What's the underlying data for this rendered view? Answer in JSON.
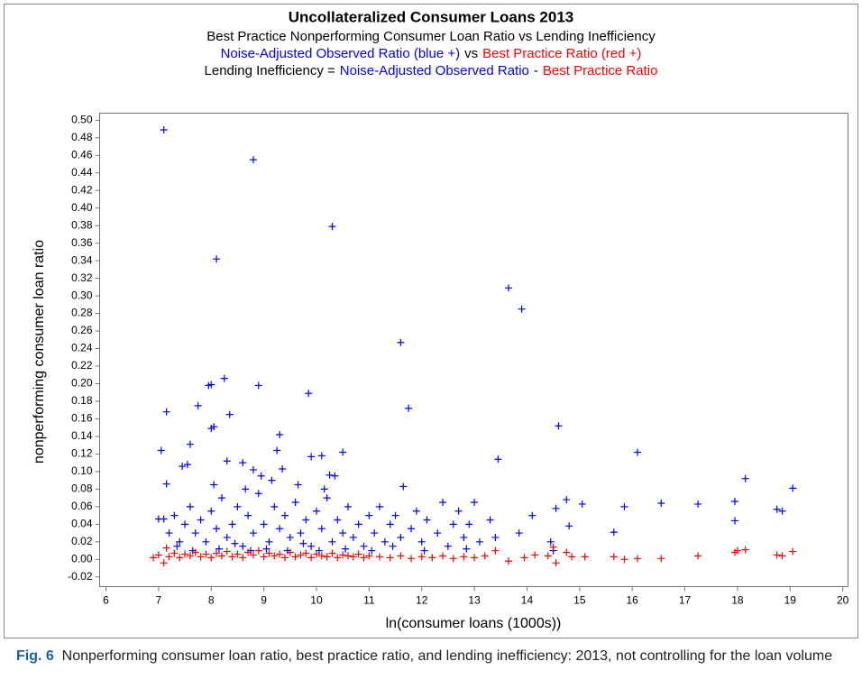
{
  "chart_data": {
    "type": "scatter",
    "title": "Uncollateralized Consumer Loans 2013",
    "subtitle": "Best Practice Nonperforming Consumer Loan Ratio vs Lending Inefficiency",
    "subtitle_lines": [
      [
        {
          "text": "Noise-Adjusted Observed Ratio (blue +)",
          "color": "#0000ff"
        },
        {
          "text": "vs",
          "color": "#000000"
        },
        {
          "text": "Best Practice Ratio (red +)",
          "color": "#ff0000"
        }
      ],
      [
        {
          "text": "Lending Inefficiency =",
          "color": "#000000"
        },
        {
          "text": "Noise-Adjusted Observed Ratio",
          "color": "#0000ff"
        },
        {
          "text": "-",
          "color": "#000000"
        },
        {
          "text": "Best Practice Ratio",
          "color": "#ff0000"
        }
      ]
    ],
    "x_label": "ln(consumer loans (1000s))",
    "y_label": "nonperforming consumer loan ratio",
    "xlim": [
      5.88,
      20.1
    ],
    "ylim": [
      -0.031,
      0.508
    ],
    "xticks": [
      6,
      7,
      8,
      9,
      10,
      11,
      12,
      13,
      14,
      15,
      16,
      17,
      18,
      19,
      20
    ],
    "yticks": [
      {
        "value": -0.02,
        "label": "-0.02"
      },
      {
        "value": 0,
        "label": "0.00"
      },
      {
        "value": 0.02,
        "label": "0.02"
      },
      {
        "value": 0.04,
        "label": "0.04"
      },
      {
        "value": 0.06,
        "label": "0.06"
      },
      {
        "value": 0.08,
        "label": "0.08"
      },
      {
        "value": 0.1,
        "label": "0.10"
      },
      {
        "value": 0.12,
        "label": "0.12"
      },
      {
        "value": 0.14,
        "label": "0.14"
      },
      {
        "value": 0.16,
        "label": "0.16"
      },
      {
        "value": 0.18,
        "label": "0.18"
      },
      {
        "value": 0.2,
        "label": "0.20"
      },
      {
        "value": 0.22,
        "label": "0.22"
      },
      {
        "value": 0.24,
        "label": "0.24"
      },
      {
        "value": 0.26,
        "label": "0.26"
      },
      {
        "value": 0.28,
        "label": "0.28"
      },
      {
        "value": 0.3,
        "label": "0.30"
      },
      {
        "value": 0.32,
        "label": "0.32"
      },
      {
        "value": 0.34,
        "label": "0.34"
      },
      {
        "value": 0.36,
        "label": "0.36"
      },
      {
        "value": 0.38,
        "label": "0.38"
      },
      {
        "value": 0.4,
        "label": "0.40"
      },
      {
        "value": 0.42,
        "label": "0.42"
      },
      {
        "value": 0.44,
        "label": "0.44"
      },
      {
        "value": 0.46,
        "label": "0.46"
      },
      {
        "value": 0.48,
        "label": "0.48"
      },
      {
        "value": 0.5,
        "label": "0.50"
      }
    ],
    "series": [
      {
        "color": "#0000ff",
        "x": [
          7.1,
          8.8,
          10.3,
          8.1,
          13.65,
          13.9,
          11.6,
          8.25,
          7.95,
          8.0,
          8.9,
          9.85,
          7.75,
          11.75,
          7.15,
          8.35,
          14.6,
          8.05,
          8.0,
          9.3,
          7.6,
          7.05,
          9.25,
          10.5,
          16.1,
          10.1,
          9.9,
          13.45,
          8.3,
          7.45,
          8.6,
          7.55,
          8.8,
          9.35,
          7.15,
          8.95,
          10.25,
          10.35,
          11.65,
          18.15,
          19.05,
          14.1,
          14.75,
          14.55,
          15.05,
          15.85,
          16.55,
          17.25,
          17.95,
          17.95,
          18.75,
          18.85,
          15.65,
          14.8,
          13.85,
          14.45,
          14.5,
          7.0,
          7.1,
          7.2,
          7.3,
          7.4,
          7.5,
          7.6,
          7.7,
          7.8,
          7.9,
          8.0,
          8.1,
          8.2,
          8.3,
          8.4,
          8.5,
          8.6,
          8.7,
          8.8,
          8.9,
          9.0,
          9.1,
          9.2,
          9.3,
          9.4,
          9.5,
          9.6,
          9.7,
          9.8,
          9.9,
          10.0,
          10.1,
          10.2,
          10.3,
          10.4,
          10.5,
          10.6,
          10.7,
          10.8,
          10.9,
          11.0,
          11.1,
          11.2,
          11.3,
          11.4,
          11.5,
          11.6,
          11.8,
          11.9,
          12.0,
          12.1,
          12.3,
          12.4,
          12.5,
          12.6,
          12.7,
          12.8,
          12.9,
          13.0,
          13.1,
          13.3,
          13.4,
          7.35,
          7.65,
          8.15,
          8.45,
          8.75,
          9.05,
          9.45,
          9.75,
          10.05,
          10.55,
          11.05,
          11.45,
          12.05,
          12.85,
          8.05,
          8.65,
          9.15,
          9.65,
          10.15
        ],
        "values": [
          0.489,
          0.455,
          0.379,
          0.342,
          0.309,
          0.285,
          0.247,
          0.206,
          0.198,
          0.199,
          0.198,
          0.189,
          0.175,
          0.172,
          0.168,
          0.165,
          0.152,
          0.151,
          0.149,
          0.142,
          0.131,
          0.124,
          0.124,
          0.122,
          0.122,
          0.118,
          0.117,
          0.114,
          0.112,
          0.106,
          0.11,
          0.108,
          0.102,
          0.103,
          0.086,
          0.095,
          0.096,
          0.095,
          0.083,
          0.092,
          0.081,
          0.05,
          0.068,
          0.058,
          0.063,
          0.06,
          0.064,
          0.063,
          0.066,
          0.044,
          0.057,
          0.055,
          0.031,
          0.038,
          0.03,
          0.02,
          0.01,
          0.046,
          0.046,
          0.03,
          0.05,
          0.02,
          0.04,
          0.06,
          0.03,
          0.045,
          0.02,
          0.055,
          0.035,
          0.07,
          0.025,
          0.04,
          0.06,
          0.015,
          0.05,
          0.03,
          0.075,
          0.04,
          0.02,
          0.06,
          0.035,
          0.05,
          0.025,
          0.065,
          0.03,
          0.045,
          0.015,
          0.055,
          0.035,
          0.07,
          0.02,
          0.045,
          0.03,
          0.06,
          0.025,
          0.04,
          0.015,
          0.05,
          0.03,
          0.06,
          0.02,
          0.04,
          0.05,
          0.025,
          0.035,
          0.055,
          0.02,
          0.045,
          0.03,
          0.065,
          0.015,
          0.04,
          0.055,
          0.025,
          0.04,
          0.065,
          0.02,
          0.045,
          0.025,
          0.015,
          0.01,
          0.012,
          0.018,
          0.01,
          0.012,
          0.01,
          0.018,
          0.01,
          0.012,
          0.01,
          0.015,
          0.01,
          0.012,
          0.085,
          0.08,
          0.09,
          0.085,
          0.08
        ]
      },
      {
        "color": "#ff0000",
        "x": [
          6.9,
          7.0,
          7.1,
          7.15,
          7.2,
          7.3,
          7.4,
          7.5,
          7.6,
          7.7,
          7.8,
          7.9,
          8.0,
          8.1,
          8.2,
          8.3,
          8.4,
          8.5,
          8.6,
          8.7,
          8.8,
          8.9,
          9.0,
          9.1,
          9.2,
          9.3,
          9.4,
          9.5,
          9.6,
          9.7,
          9.8,
          9.9,
          10.0,
          10.1,
          10.2,
          10.3,
          10.4,
          10.5,
          10.6,
          10.7,
          10.8,
          10.9,
          11.0,
          11.2,
          11.4,
          11.6,
          11.8,
          12.0,
          12.2,
          12.4,
          12.6,
          12.8,
          13.0,
          13.2,
          13.4,
          13.65,
          13.95,
          14.15,
          14.4,
          14.5,
          14.55,
          14.75,
          14.85,
          15.1,
          15.65,
          15.85,
          16.1,
          16.55,
          17.25,
          17.95,
          18.0,
          18.15,
          18.75,
          18.85,
          19.05
        ],
        "values": [
          0.002,
          0.005,
          -0.004,
          0.013,
          0.003,
          0.007,
          0.002,
          0.006,
          0.004,
          0.008,
          0.003,
          0.006,
          0.002,
          0.007,
          0.004,
          0.009,
          0.003,
          0.006,
          0.002,
          0.008,
          0.005,
          0.01,
          0.003,
          0.007,
          0.004,
          0.006,
          0.002,
          0.008,
          0.003,
          0.005,
          0.007,
          0.002,
          0.006,
          0.004,
          0.003,
          0.007,
          0.002,
          0.005,
          0.004,
          0.003,
          0.006,
          0.002,
          0.004,
          0.003,
          0.002,
          0.004,
          0.001,
          0.003,
          0.002,
          0.004,
          0.001,
          0.003,
          0.002,
          0.004,
          0.01,
          -0.002,
          0.002,
          0.005,
          0.004,
          0.014,
          -0.004,
          0.008,
          0.003,
          0.003,
          0.003,
          0.0,
          0.001,
          0.001,
          0.004,
          0.008,
          0.01,
          0.011,
          0.005,
          0.004,
          0.009
        ]
      }
    ]
  }
}
